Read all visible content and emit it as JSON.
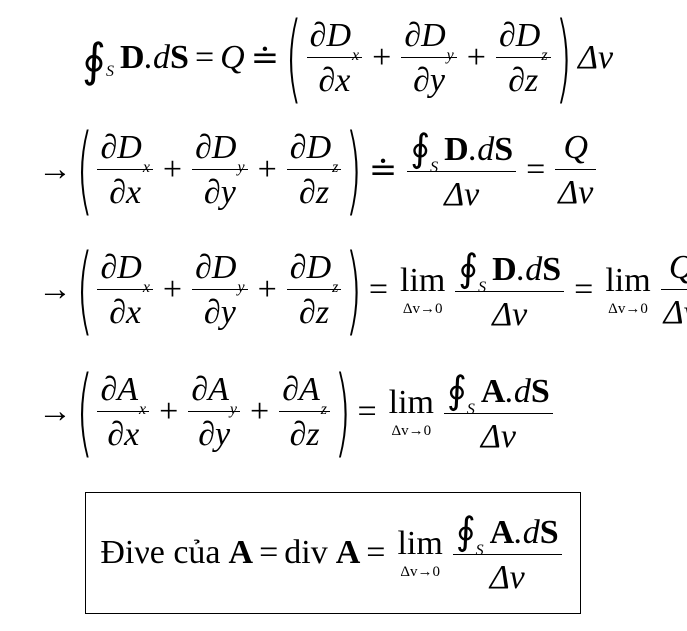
{
  "equations": {
    "eq1": {
      "surface_sub": "S",
      "D": "D",
      "dot_d": ".d",
      "S": "S",
      "equals": "=",
      "Q": "Q",
      "approx": "≐",
      "dD": "∂D",
      "sub_x": "x",
      "sub_y": "y",
      "sub_z": "z",
      "dx": "∂x",
      "dy": "∂y",
      "dz": "∂z",
      "plus": "+",
      "dv": "Δv"
    },
    "eq2": {
      "arrow": "→",
      "approx": "≐",
      "equals": "=",
      "Q": "Q",
      "dv": "Δv"
    },
    "eq3": {
      "arrow": "→",
      "equals": "=",
      "lim": "lim",
      "lim_under": "Δv→0",
      "Q": "Q",
      "dv": "Δv"
    },
    "eq4": {
      "arrow": "→",
      "dA": "∂A",
      "A": "A",
      "equals": "=",
      "lim": "lim",
      "lim_under": "Δv→0",
      "dv": "Δv"
    },
    "boxed": {
      "label": "Điνe của",
      "A": "A",
      "equals": "=",
      "div": "div",
      "lim": "lim",
      "lim_under": "Δv→0",
      "dv": "Δv"
    },
    "symbols": {
      "oint": "∮",
      "lparen": "(",
      "rparen": ")"
    }
  }
}
